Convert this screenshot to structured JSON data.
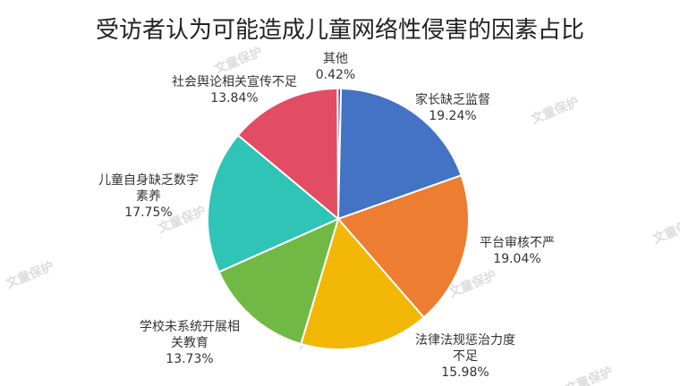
{
  "chart_data": {
    "type": "pie",
    "title": "受访者认为可能造成儿童网络性侵害的因素占比",
    "slices": [
      {
        "name": "其他",
        "label_lines": [
          "其他"
        ],
        "value": 0.42,
        "value_text": "0.42%",
        "color": "#3D4E9A"
      },
      {
        "name": "家长缺乏监督",
        "label_lines": [
          "家长缺乏监督"
        ],
        "value": 19.24,
        "value_text": "19.24%",
        "color": "#4472C4"
      },
      {
        "name": "平台审核不严",
        "label_lines": [
          "平台审核不严"
        ],
        "value": 19.04,
        "value_text": "19.04%",
        "color": "#ED7D31"
      },
      {
        "name": "法律法规惩治力度不足",
        "label_lines": [
          "法律法规惩治力度",
          "不足"
        ],
        "value": 15.98,
        "value_text": "15.98%",
        "color": "#F2B705"
      },
      {
        "name": "学校未系统开展相关教育",
        "label_lines": [
          "学校未系统开展相",
          "关教育"
        ],
        "value": 13.73,
        "value_text": "13.73%",
        "color": "#70B944"
      },
      {
        "name": "儿童自身缺乏数字素养",
        "label_lines": [
          "儿童自身缺乏数字",
          "素养"
        ],
        "value": 17.75,
        "value_text": "17.75%",
        "color": "#2EC4B6"
      },
      {
        "name": "社会舆论相关宣传不足",
        "label_lines": [
          "社会舆论相关宣传不足"
        ],
        "value": 13.84,
        "value_text": "13.84%",
        "color": "#E34D64"
      }
    ]
  },
  "watermark": "文童保护"
}
